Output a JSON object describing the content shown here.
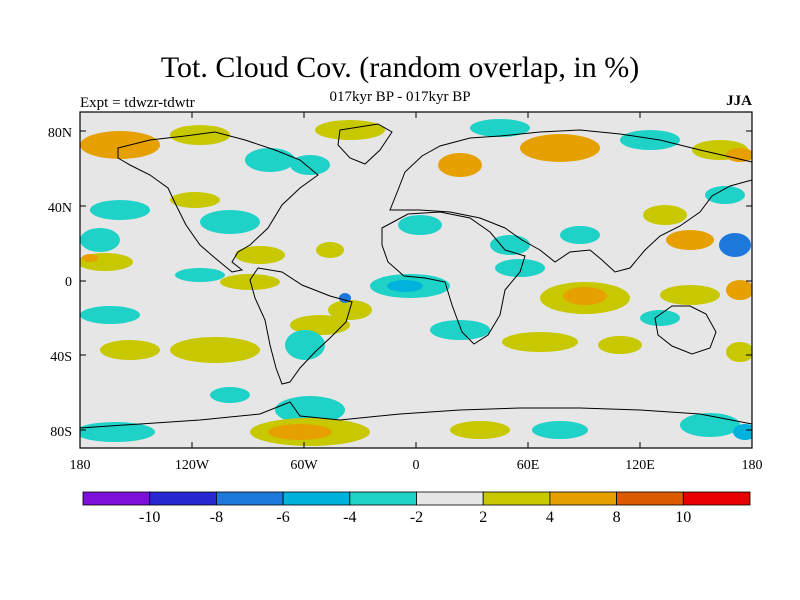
{
  "title": "Tot. Cloud Cov. (random overlap, in %)",
  "subtitle": "017kyr BP - 017kyr BP",
  "experiment": "Expt = tdwzr-tdwtr",
  "season": "JJA",
  "lat_labels": [
    "80N",
    "40N",
    "0",
    "40S",
    "80S"
  ],
  "lon_labels": [
    "180",
    "120W",
    "60W",
    "0",
    "60E",
    "120E",
    "180"
  ],
  "colorbar": {
    "colors": [
      "#7c10d8",
      "#2828d0",
      "#1e78dc",
      "#00b2dc",
      "#1ed2c8",
      "#e6e6e6",
      "#c8c800",
      "#e6a000",
      "#dc5a00",
      "#e60000"
    ],
    "labels": [
      "-10",
      "-8",
      "-6",
      "-4",
      "-2",
      "2",
      "4",
      "8",
      "10"
    ]
  },
  "map_colors": {
    "ocean": "#e6e6e6",
    "coast": "#000000",
    "neg_light": "#1ed2c8",
    "neg_mid": "#00b2dc",
    "neg_dark": "#1e78dc",
    "pos_light": "#c8c800",
    "pos_mid": "#e6a000",
    "pos_dark": "#dc5a00"
  }
}
